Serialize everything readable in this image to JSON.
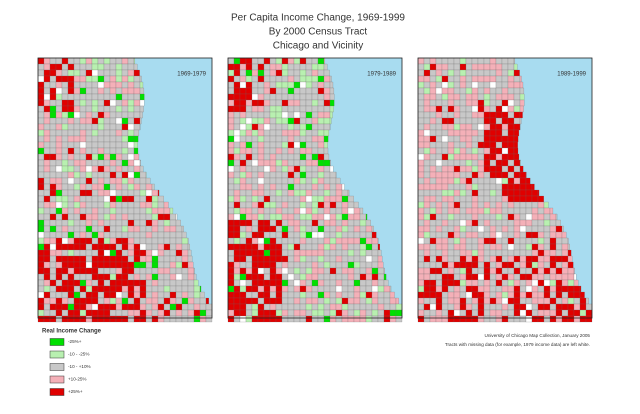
{
  "title": [
    "Per Capita Income Change, 1969-1999",
    "By 2000 Census Tract",
    "Chicago and Vicinity"
  ],
  "panels": [
    {
      "label": "1969-1979"
    },
    {
      "label": "1979-1989"
    },
    {
      "label": "1989-1999"
    }
  ],
  "legend": {
    "title": "Real Income Change",
    "items": [
      {
        "label": "-25%+",
        "color": "#00e000"
      },
      {
        "label": "-10 - -25%",
        "color": "#b8f0b0"
      },
      {
        "label": "-10 - +10%",
        "color": "#c8c8c8"
      },
      {
        "label": "+10-25%",
        "color": "#f4b0b8"
      },
      {
        "label": "+25%+",
        "color": "#e00000"
      }
    ]
  },
  "credits": [
    "University of Chicago Map Collection, January 2005",
    "Tracts with missing data (for example, 1979 income data) are left white."
  ]
}
